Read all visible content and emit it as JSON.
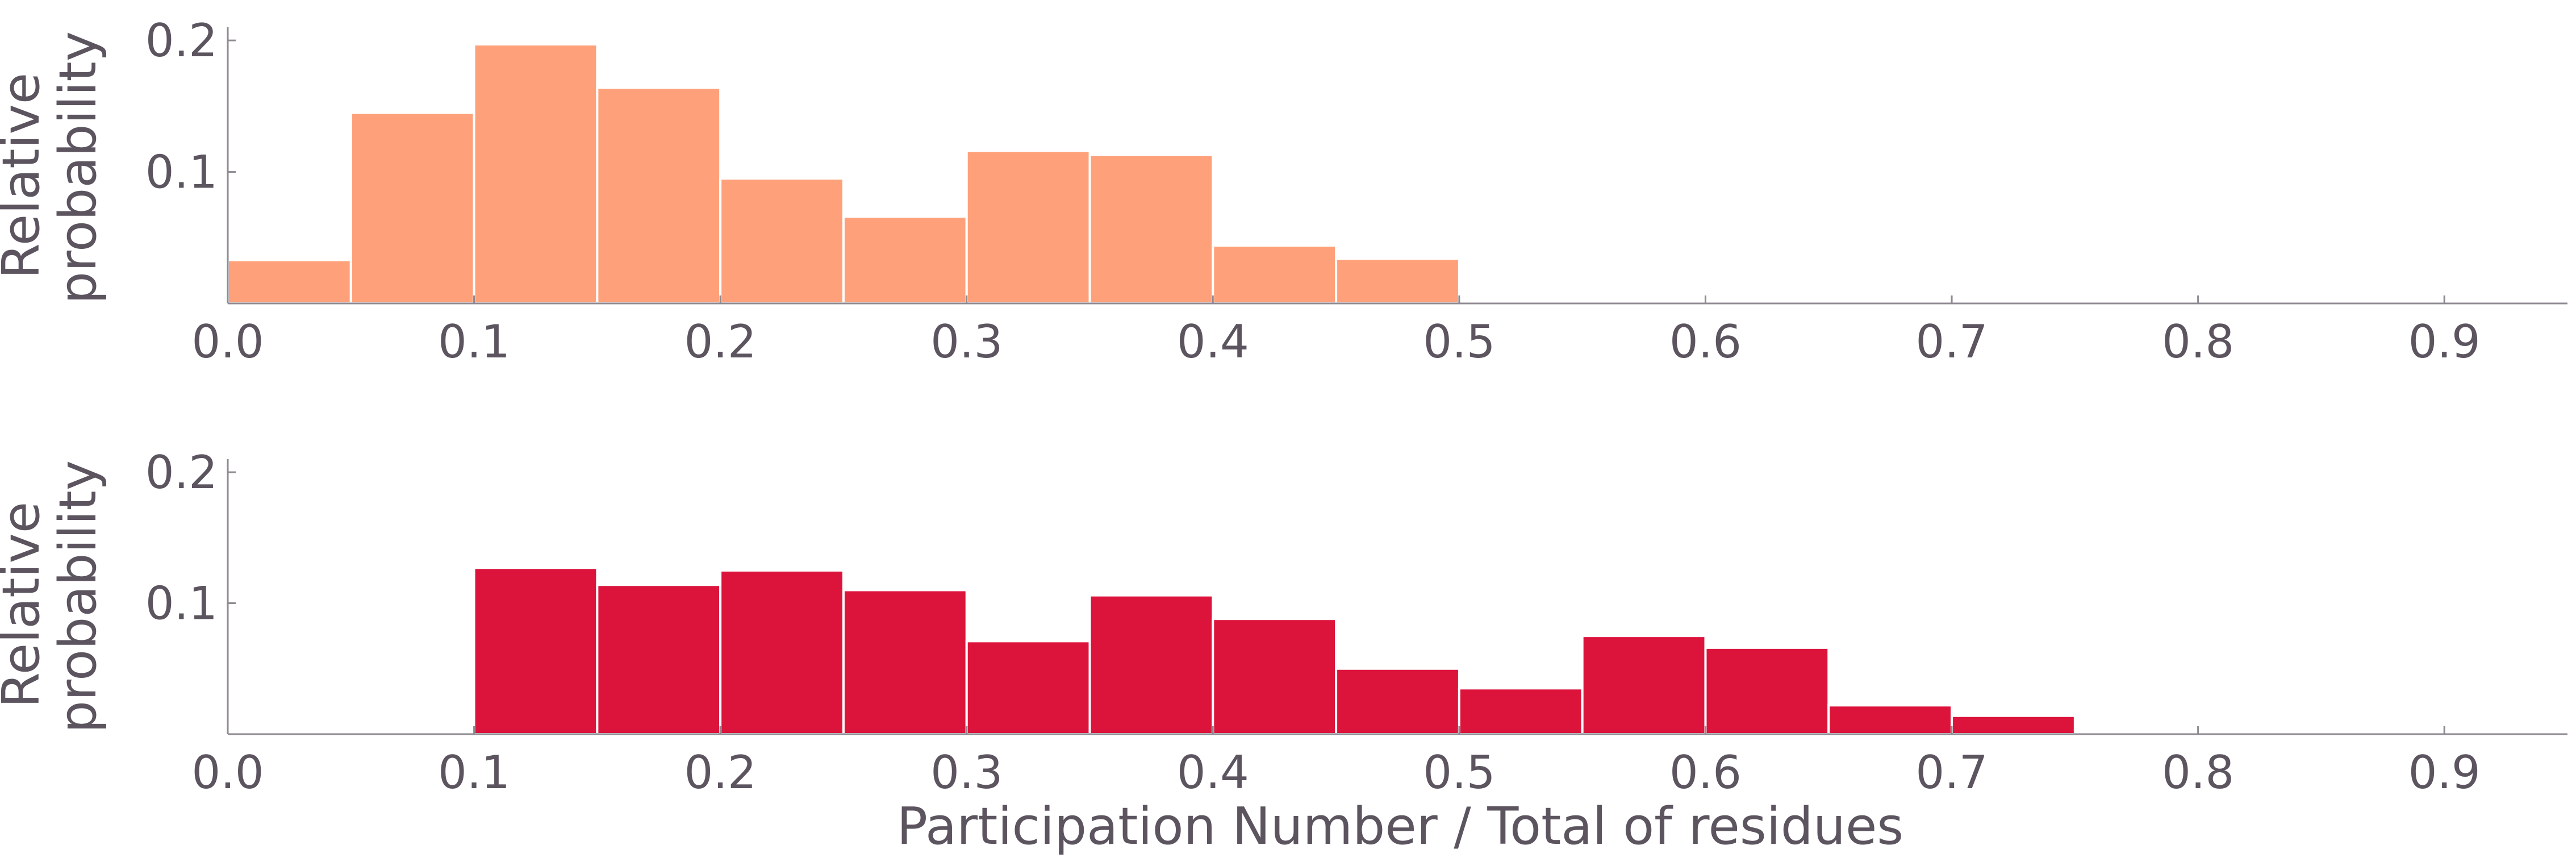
{
  "chart_data": [
    {
      "type": "bar",
      "subplot": "top",
      "color": "#fea17a",
      "bin_edges": [
        0.0,
        0.05,
        0.1,
        0.15,
        0.2,
        0.25,
        0.3,
        0.35,
        0.4,
        0.45,
        0.5
      ],
      "values": [
        0.033,
        0.145,
        0.197,
        0.164,
        0.095,
        0.066,
        0.116,
        0.113,
        0.044,
        0.034
      ],
      "ylabel": [
        "Relative",
        "probability"
      ],
      "xlabel": "",
      "xlim": [
        0.0,
        0.95
      ],
      "ylim": [
        0.0,
        0.21
      ],
      "xticks": [
        "0.0",
        "0.1",
        "0.2",
        "0.3",
        "0.4",
        "0.5",
        "0.6",
        "0.7",
        "0.8",
        "0.9"
      ],
      "yticks": [
        "0.1",
        "0.2"
      ],
      "grid": false
    },
    {
      "type": "bar",
      "subplot": "bottom",
      "color": "#dc143c",
      "bin_edges": [
        0.1,
        0.15,
        0.2,
        0.25,
        0.3,
        0.35,
        0.4,
        0.45,
        0.5,
        0.55,
        0.6,
        0.65,
        0.7,
        0.75
      ],
      "values": [
        0.127,
        0.114,
        0.125,
        0.11,
        0.071,
        0.106,
        0.088,
        0.05,
        0.035,
        0.075,
        0.066,
        0.022,
        0.014
      ],
      "ylabel": [
        "Relative",
        "probability"
      ],
      "xlabel": "Participation Number / Total of residues",
      "xlim": [
        0.0,
        0.95
      ],
      "ylim": [
        0.0,
        0.21
      ],
      "xticks": [
        "0.0",
        "0.1",
        "0.2",
        "0.3",
        "0.4",
        "0.5",
        "0.6",
        "0.7",
        "0.8",
        "0.9"
      ],
      "yticks": [
        "0.1",
        "0.2"
      ],
      "grid": false
    }
  ]
}
